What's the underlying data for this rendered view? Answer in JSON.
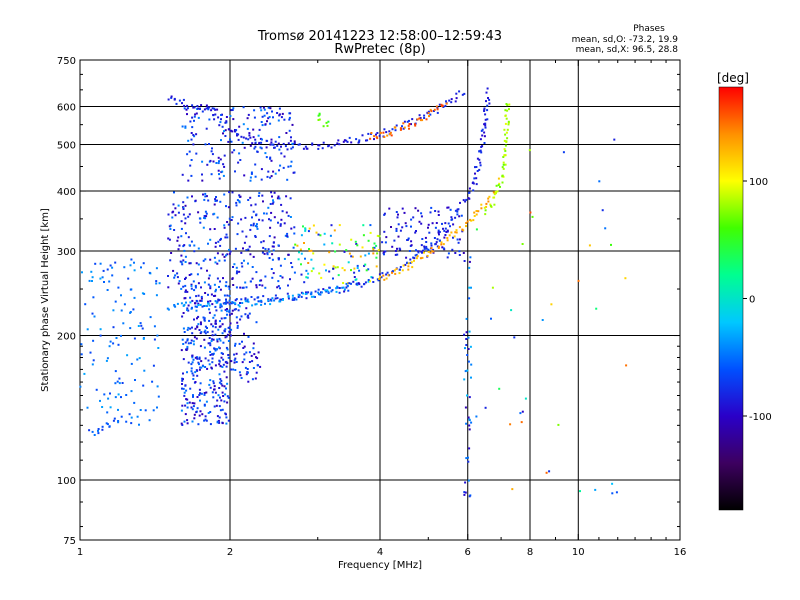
{
  "chart_data": {
    "type": "scatter",
    "title": "Tromsø 20141223 12:58:00–12:59:43",
    "subtitle": "RwPretec (8p)",
    "xlabel": "Frequency [MHz]",
    "ylabel": "Stationary phase Virtual Height [km]",
    "x_scale": "log",
    "y_scale": "log",
    "xlim": [
      1,
      16
    ],
    "ylim": [
      75,
      750
    ],
    "x_ticks": [
      1,
      2,
      4,
      6,
      8,
      10,
      16
    ],
    "x_tick_labels": [
      "1",
      "2",
      "4",
      "6",
      "8",
      "10",
      "16"
    ],
    "y_ticks": [
      75,
      100,
      200,
      300,
      400,
      500,
      600,
      750
    ],
    "y_tick_labels": [
      "75",
      "100",
      "200",
      "300",
      "400",
      "500",
      "600",
      "750"
    ],
    "grid": true,
    "annotation": {
      "heading": "Phases",
      "line1": "mean, sd,O: -73.2, 19.9",
      "line2": "mean, sd,X:  96.5, 28.8"
    },
    "colorbar": {
      "unit": "[deg]",
      "min": -180,
      "max": 180,
      "tick_values": [
        100,
        0,
        -100
      ],
      "tick_labels": [
        "100",
        "0",
        "-100"
      ],
      "colors": [
        "#000000",
        "#3d0060",
        "#2a00c8",
        "#0050ff",
        "#00c8ff",
        "#00ff90",
        "#40ff00",
        "#ffff00",
        "#ff9000",
        "#ff0000"
      ]
    },
    "traces": [
      {
        "name": "",
        "phase": -85,
        "points": [
          [
            1.5,
            630
          ],
          [
            1.6,
            610
          ],
          [
            1.7,
            590
          ],
          [
            1.8,
            600
          ],
          [
            1.9,
            560
          ],
          [
            2.1,
            520
          ],
          [
            2.4,
            500
          ],
          [
            2.8,
            495
          ],
          [
            3.2,
            500
          ],
          [
            3.6,
            510
          ],
          [
            4.0,
            525
          ],
          [
            4.5,
            550
          ],
          [
            5.0,
            580
          ],
          [
            5.6,
            620
          ],
          [
            5.9,
            650
          ]
        ]
      },
      {
        "name": "",
        "phase": 150,
        "points": [
          [
            3.8,
            520
          ],
          [
            4.0,
            525
          ],
          [
            4.2,
            530
          ],
          [
            4.5,
            545
          ],
          [
            4.8,
            565
          ],
          [
            5.2,
            590
          ],
          [
            5.5,
            610
          ]
        ]
      },
      {
        "name": "",
        "phase": -80,
        "points": [
          [
            1.9,
            235
          ],
          [
            2.1,
            236
          ],
          [
            2.4,
            238
          ],
          [
            2.8,
            242
          ],
          [
            3.2,
            248
          ],
          [
            3.6,
            255
          ],
          [
            4.0,
            265
          ],
          [
            4.4,
            278
          ],
          [
            4.8,
            295
          ],
          [
            5.2,
            315
          ],
          [
            5.5,
            340
          ],
          [
            5.8,
            370
          ]
        ]
      },
      {
        "name": "",
        "phase": -40,
        "points": [
          [
            1.5,
            230
          ],
          [
            1.8,
            232
          ],
          [
            2.1,
            234
          ],
          [
            2.5,
            236
          ],
          [
            3.0,
            245
          ],
          [
            3.5,
            255
          ]
        ]
      },
      {
        "name": "",
        "phase": -85,
        "points": [
          [
            5.8,
            370
          ],
          [
            6.0,
            390
          ],
          [
            6.2,
            420
          ],
          [
            6.35,
            470
          ],
          [
            6.45,
            520
          ],
          [
            6.5,
            560
          ],
          [
            6.55,
            600
          ],
          [
            6.6,
            650
          ]
        ]
      },
      {
        "name": "",
        "phase": 130,
        "points": [
          [
            4.0,
            262
          ],
          [
            4.4,
            272
          ],
          [
            4.8,
            288
          ],
          [
            5.2,
            305
          ],
          [
            5.6,
            325
          ],
          [
            6.0,
            345
          ],
          [
            6.4,
            370
          ],
          [
            6.8,
            400
          ]
        ]
      },
      {
        "name": "",
        "phase": 80,
        "points": [
          [
            6.5,
            360
          ],
          [
            6.8,
            385
          ],
          [
            7.0,
            420
          ],
          [
            7.1,
            460
          ],
          [
            7.15,
            500
          ],
          [
            7.2,
            560
          ],
          [
            7.2,
            620
          ]
        ]
      },
      {
        "name": "",
        "phase": 60,
        "points": [
          [
            3.0,
            580
          ],
          [
            3.05,
            560
          ],
          [
            3.1,
            550
          ],
          [
            3.2,
            545
          ]
        ]
      },
      {
        "name": "",
        "phase": -60,
        "points": [
          [
            1.05,
            125
          ],
          [
            1.1,
            128
          ],
          [
            1.15,
            130
          ],
          [
            1.2,
            135
          ]
        ]
      }
    ],
    "clouds": [
      {
        "f_min": 1.6,
        "f_max": 2.0,
        "h_min": 130,
        "h_max": 260,
        "count": 360,
        "phase_min": -110,
        "phase_max": -40
      },
      {
        "f_min": 1.5,
        "f_max": 2.7,
        "h_min": 250,
        "h_max": 400,
        "count": 320,
        "phase_min": -110,
        "phase_max": -40
      },
      {
        "f_min": 1.6,
        "f_max": 2.7,
        "h_min": 420,
        "h_max": 600,
        "count": 200,
        "phase_min": -110,
        "phase_max": -40
      },
      {
        "f_min": 1.0,
        "f_max": 1.45,
        "h_min": 130,
        "h_max": 290,
        "count": 130,
        "phase_min": -70,
        "phase_max": -30
      },
      {
        "f_min": 2.0,
        "f_max": 2.3,
        "h_min": 160,
        "h_max": 230,
        "count": 70,
        "phase_min": -110,
        "phase_max": -50
      },
      {
        "f_min": 2.7,
        "f_max": 4.0,
        "h_min": 255,
        "h_max": 340,
        "count": 110,
        "phase_min": -100,
        "phase_max": 140
      },
      {
        "f_min": 4.0,
        "f_max": 5.9,
        "h_min": 290,
        "h_max": 370,
        "count": 110,
        "phase_min": -110,
        "phase_max": -60
      },
      {
        "f_min": 5.9,
        "f_max": 6.1,
        "h_min": 90,
        "h_max": 310,
        "count": 45,
        "phase_min": -110,
        "phase_max": -20
      },
      {
        "f_min": 6.2,
        "f_max": 12.5,
        "h_min": 90,
        "h_max": 600,
        "count": 40,
        "phase_min": -110,
        "phase_max": 160
      }
    ]
  }
}
